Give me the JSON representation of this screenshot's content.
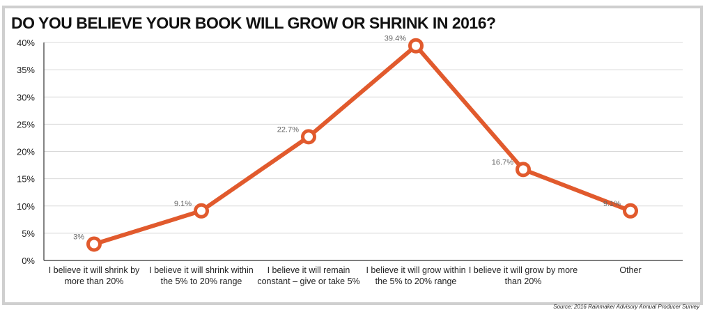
{
  "chart_data": {
    "type": "line",
    "title": "DO YOU BELIEVE YOUR BOOK WILL GROW OR SHRINK IN 2016?",
    "categories": [
      [
        "I believe it will shrink by",
        "more than 20%"
      ],
      [
        "I believe it will shrink within",
        "the 5% to 20% range"
      ],
      [
        "I believe it will remain",
        "constant – give or take 5%"
      ],
      [
        "I believe it will grow within",
        "the 5% to 20% range"
      ],
      [
        "I believe it will grow by more",
        "than 20%"
      ],
      [
        "Other"
      ]
    ],
    "values": [
      3,
      9.1,
      22.7,
      39.4,
      16.7,
      9.1
    ],
    "value_labels": [
      "3%",
      "9.1%",
      "22.7%",
      "39.4%",
      "16.7%",
      "9.1%"
    ],
    "yticks": [
      "0%",
      "5%",
      "10%",
      "15%",
      "20%",
      "25%",
      "30%",
      "35%",
      "40%"
    ],
    "ylim": [
      0,
      40
    ],
    "xlabel": "",
    "ylabel": "",
    "grid": true,
    "colors": {
      "line": "#e15a2d",
      "grid": "#d9d9d9",
      "axis": "#333333"
    },
    "source": "Source: 2016 Rainmaker Advisory Annual Producer Survey"
  }
}
